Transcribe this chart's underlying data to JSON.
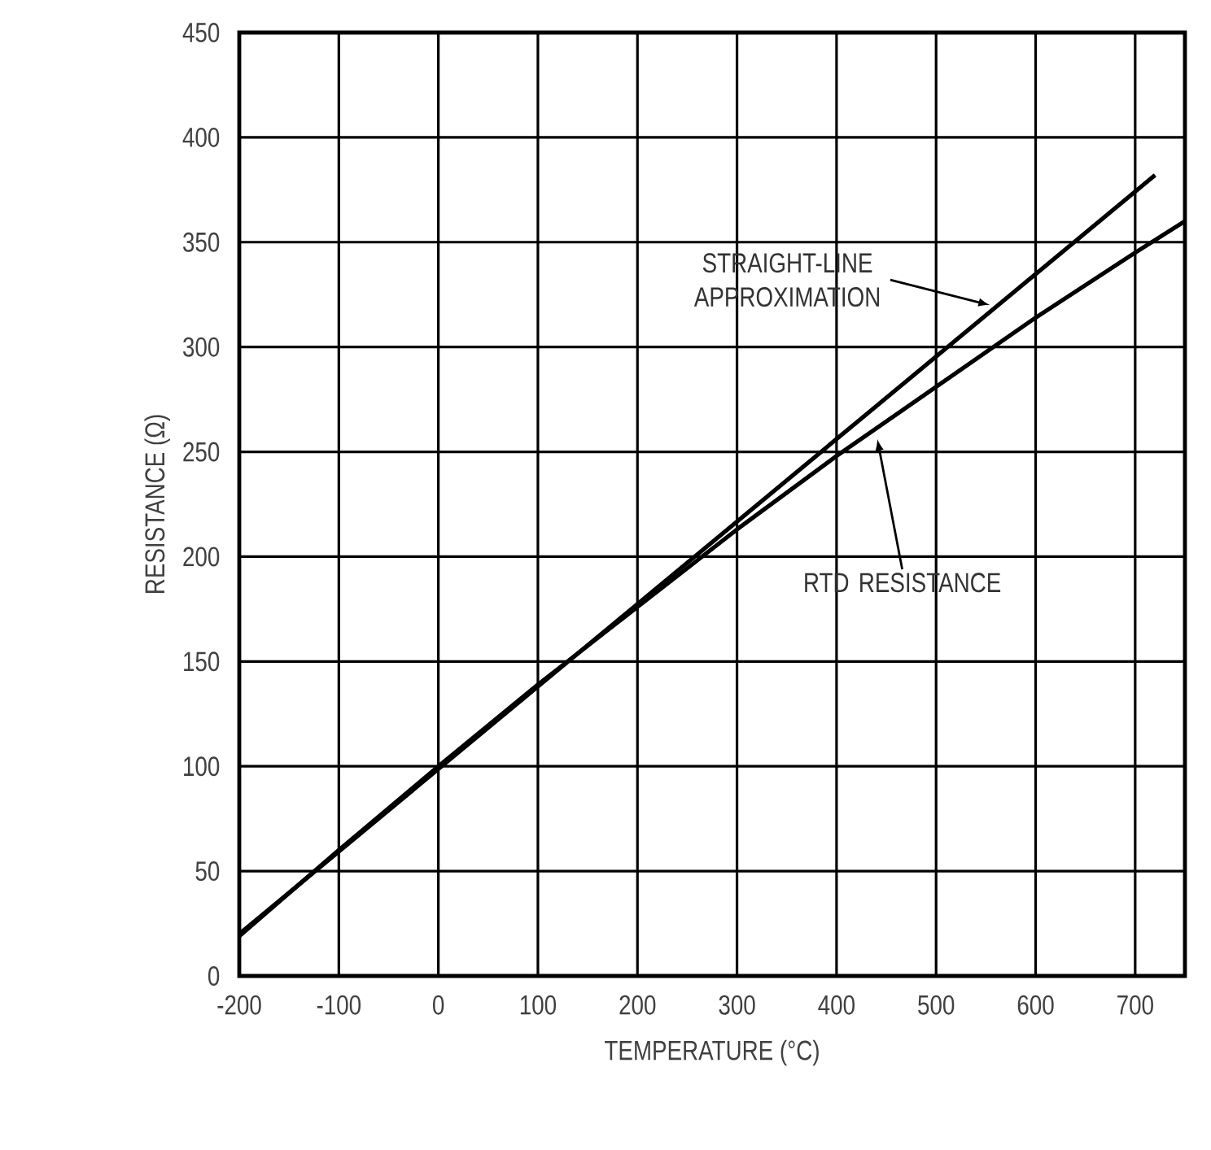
{
  "chart_data": {
    "type": "line",
    "xlabel": "TEMPERATURE (°C)",
    "ylabel": "RESISTANCE (Ω)",
    "xlim": [
      -200,
      750
    ],
    "ylim": [
      0,
      450
    ],
    "xticks": [
      -200,
      -100,
      0,
      100,
      200,
      300,
      400,
      500,
      600,
      700
    ],
    "yticks": [
      0,
      50,
      100,
      150,
      200,
      250,
      300,
      350,
      400,
      450
    ],
    "grid": true,
    "marker": "none",
    "line_style": "solid",
    "series": [
      {
        "color": "#000000",
        "x": [
          -200,
          720
        ],
        "values": [
          20,
          382
        ]
      },
      {
        "color": "#000000",
        "x": [
          -200,
          -100,
          0,
          100,
          200,
          300,
          400,
          500,
          600,
          700,
          750
        ],
        "values": [
          19,
          60,
          100,
          139,
          176,
          213,
          248,
          281,
          314,
          345,
          360
        ]
      }
    ],
    "annotations": [
      {
        "text": "STRAIGHT-LINE APPROXIMATION",
        "x": 554,
        "y": 320
      },
      {
        "text": "RTD RESISTANCE",
        "x": 441,
        "y": 256
      }
    ]
  }
}
